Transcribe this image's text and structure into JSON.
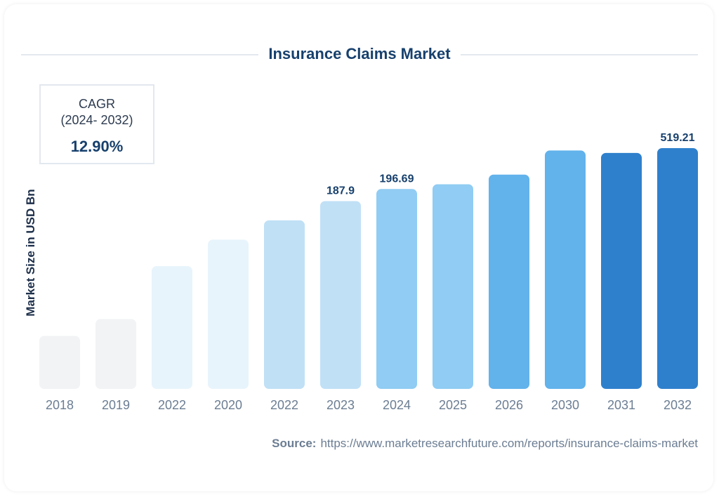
{
  "chart_data": {
    "type": "bar",
    "title": "Insurance Claims Market",
    "ylabel": "Market Size in USD Bn",
    "xlabel": "",
    "categories": [
      "2018",
      "2019",
      "2022",
      "2020",
      "2022",
      "2023",
      "2024",
      "2025",
      "2026",
      "2030",
      "2031",
      "2032"
    ],
    "values": [
      null,
      null,
      null,
      null,
      null,
      187.9,
      196.69,
      null,
      null,
      null,
      null,
      519.21
    ],
    "data_labels": [
      "",
      "",
      "",
      "",
      "",
      "187.9",
      "196.69",
      "",
      "",
      "",
      "",
      "519.21"
    ],
    "relative_heights_pct": [
      22,
      29,
      51,
      62,
      70,
      78,
      83,
      85,
      89,
      99,
      98,
      100
    ],
    "colors": [
      "#f2f3f5",
      "#f2f3f5",
      "#e8f4fc",
      "#e8f4fc",
      "#c0e0f6",
      "#c0e0f6",
      "#90ccf3",
      "#90ccf3",
      "#62b2ec",
      "#62b2ec",
      "#2f80cc",
      "#2f80cc"
    ],
    "grid": false,
    "legend": "none"
  },
  "cagr": {
    "label": "CAGR",
    "period": "(2024- 2032)",
    "value": "12.90%"
  },
  "source": {
    "label": "Source:",
    "url": "https://www.marketresearchfuture.com/reports/insurance-claims-market"
  }
}
